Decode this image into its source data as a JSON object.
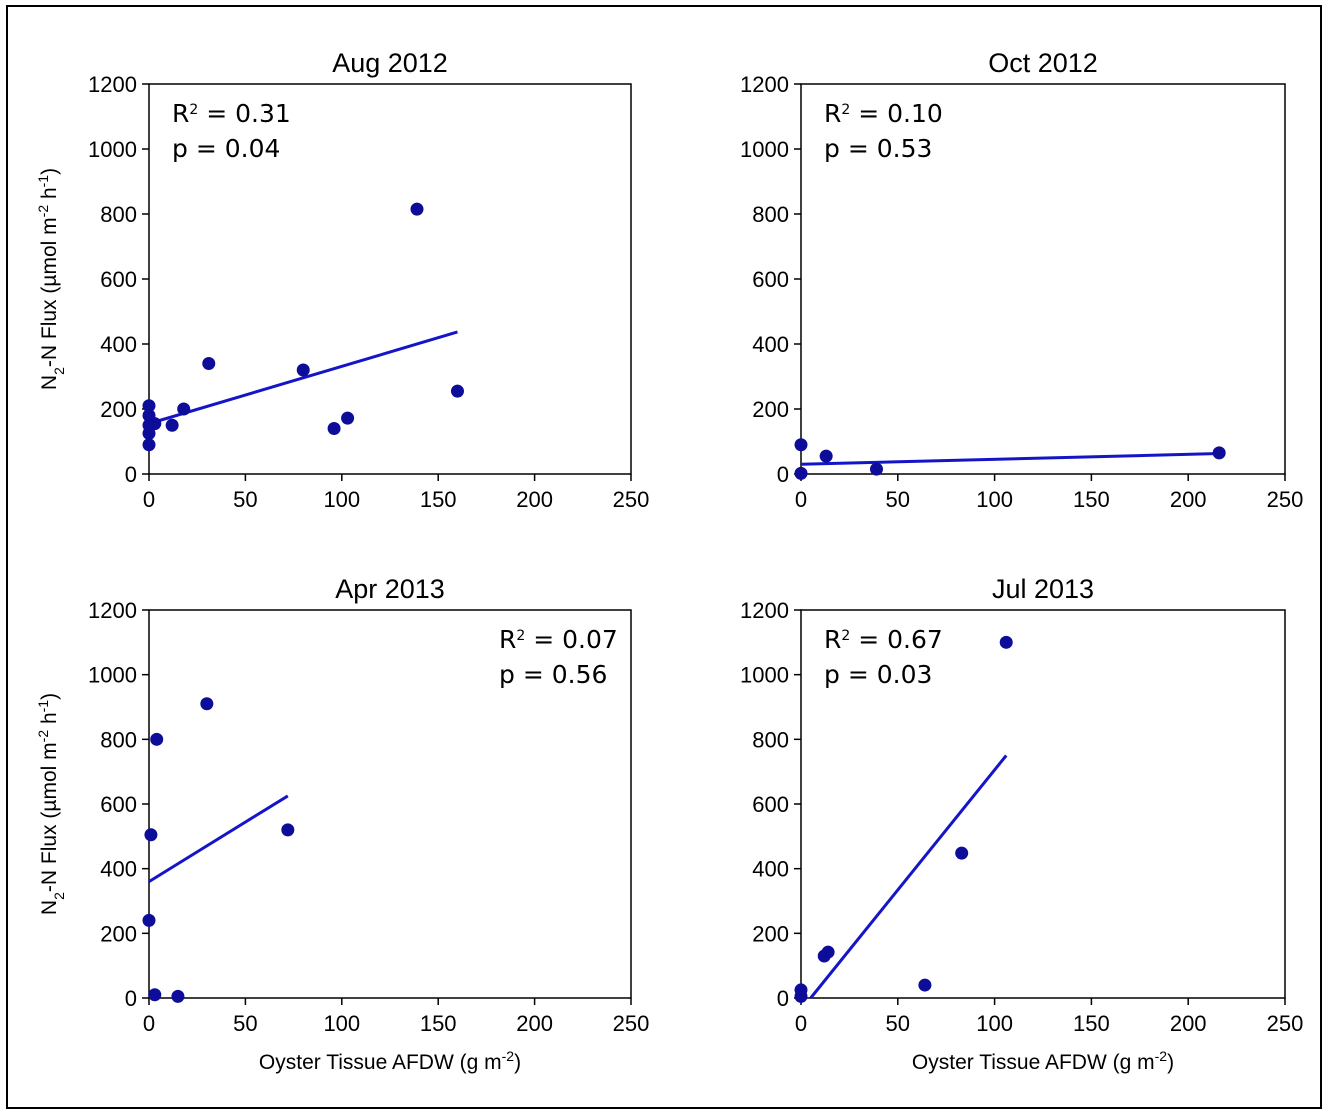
{
  "chart_data": [
    {
      "type": "scatter",
      "title": "Aug 2012",
      "ylabel": "N2-N Flux (µmol m-2 h-1)",
      "xlabel": "",
      "xlim": [
        0,
        250
      ],
      "ylim": [
        0,
        1200
      ],
      "xticks": [
        "0",
        "50",
        "100",
        "150",
        "200",
        "250"
      ],
      "yticks": [
        "0",
        "200",
        "400",
        "600",
        "800",
        "1000",
        "1200"
      ],
      "stats": {
        "r2": "0.31",
        "p": "0.04",
        "r2_prefix": "R",
        "r2_sup": "2",
        "r2_suffix": " = ",
        "p_text": "p = 0.04"
      },
      "stats_position": "top-left",
      "points": [
        {
          "x": 0,
          "y": 210
        },
        {
          "x": 0,
          "y": 180
        },
        {
          "x": 0,
          "y": 150
        },
        {
          "x": 0,
          "y": 125
        },
        {
          "x": 0,
          "y": 90
        },
        {
          "x": 3,
          "y": 155
        },
        {
          "x": 12,
          "y": 150
        },
        {
          "x": 18,
          "y": 200
        },
        {
          "x": 31,
          "y": 340
        },
        {
          "x": 80,
          "y": 320
        },
        {
          "x": 96,
          "y": 140
        },
        {
          "x": 103,
          "y": 172
        },
        {
          "x": 139,
          "y": 815
        },
        {
          "x": 160,
          "y": 255
        }
      ],
      "fit": {
        "x": [
          0,
          160
        ],
        "y": [
          155,
          437
        ]
      }
    },
    {
      "type": "scatter",
      "title": "Oct 2012",
      "ylabel": "",
      "xlabel": "",
      "xlim": [
        0,
        250
      ],
      "ylim": [
        0,
        1200
      ],
      "xticks": [
        "0",
        "50",
        "100",
        "150",
        "200",
        "250"
      ],
      "yticks": [
        "0",
        "200",
        "400",
        "600",
        "800",
        "1000",
        "1200"
      ],
      "stats": {
        "r2": "0.10",
        "p": "0.53",
        "r2_prefix": "R",
        "r2_sup": "2",
        "r2_suffix": " = ",
        "p_text": "p = 0.53"
      },
      "stats_position": "top-left",
      "points": [
        {
          "x": 0,
          "y": 90
        },
        {
          "x": 0,
          "y": 2
        },
        {
          "x": 13,
          "y": 55
        },
        {
          "x": 39,
          "y": 15
        },
        {
          "x": 216,
          "y": 65
        }
      ],
      "fit": {
        "x": [
          0,
          216
        ],
        "y": [
          30,
          63
        ]
      }
    },
    {
      "type": "scatter",
      "title": "Apr 2013",
      "ylabel": "N2-N Flux (µmol m-2 h-1)",
      "xlabel": "Oyster Tissue AFDW (g m-2)",
      "xlim": [
        0,
        250
      ],
      "ylim": [
        0,
        1200
      ],
      "xticks": [
        "0",
        "50",
        "100",
        "150",
        "200",
        "250"
      ],
      "yticks": [
        "0",
        "200",
        "400",
        "600",
        "800",
        "1000",
        "1200"
      ],
      "stats": {
        "r2": "0.07",
        "p": "0.56",
        "r2_prefix": "R",
        "r2_sup": "2",
        "r2_suffix": " = ",
        "p_text": "p = 0.56"
      },
      "stats_position": "top-right",
      "points": [
        {
          "x": 0,
          "y": 240
        },
        {
          "x": 1,
          "y": 505
        },
        {
          "x": 3,
          "y": 10
        },
        {
          "x": 4,
          "y": 800
        },
        {
          "x": 15,
          "y": 5
        },
        {
          "x": 30,
          "y": 910
        },
        {
          "x": 72,
          "y": 520
        }
      ],
      "fit": {
        "x": [
          0,
          72
        ],
        "y": [
          360,
          625
        ]
      }
    },
    {
      "type": "scatter",
      "title": "Jul 2013",
      "ylabel": "",
      "xlabel": "Oyster Tissue AFDW (g m-2)",
      "xlim": [
        0,
        250
      ],
      "ylim": [
        0,
        1200
      ],
      "xticks": [
        "0",
        "50",
        "100",
        "150",
        "200",
        "250"
      ],
      "yticks": [
        "0",
        "200",
        "400",
        "600",
        "800",
        "1000",
        "1200"
      ],
      "stats": {
        "r2": "0.67",
        "p": "0.03",
        "r2_prefix": "R",
        "r2_sup": "2",
        "r2_suffix": " = ",
        "p_text": "p = 0.03"
      },
      "stats_position": "top-left",
      "points": [
        {
          "x": 0,
          "y": 25
        },
        {
          "x": 0,
          "y": 5
        },
        {
          "x": 12,
          "y": 130
        },
        {
          "x": 14,
          "y": 142
        },
        {
          "x": 64,
          "y": 40
        },
        {
          "x": 83,
          "y": 448
        },
        {
          "x": 106,
          "y": 1100
        }
      ],
      "fit": {
        "x": [
          5,
          106
        ],
        "y": [
          0,
          750
        ]
      }
    }
  ],
  "colors": {
    "marker": "#0d0d9a",
    "fit": "#1515c8",
    "axis": "#000000"
  },
  "labels": {
    "ylabel_parts": [
      "N",
      "2",
      "-N Flux (µmol m",
      "-2",
      " h",
      "-1",
      ")"
    ],
    "xlabel_parts": [
      "Oyster Tissue AFDW (g m",
      "-2",
      ")"
    ]
  }
}
